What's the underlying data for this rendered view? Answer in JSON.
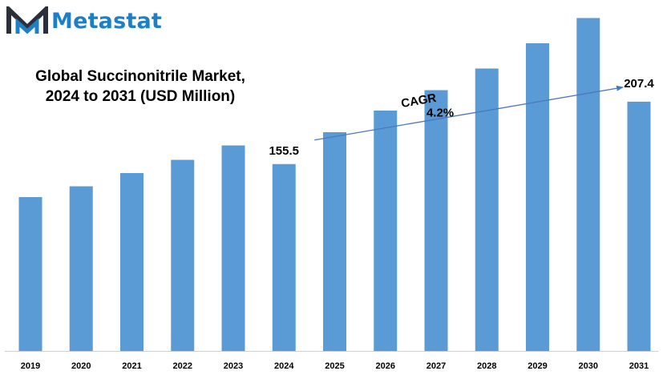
{
  "brand": {
    "name": "Metastat",
    "colors": {
      "primary": "#1f7fc4",
      "dark": "#2b2f3a"
    }
  },
  "chart_data": {
    "type": "bar",
    "title_lines": [
      "Global Succinonitrile  Market,",
      "2024 to 2031 (USD Million)"
    ],
    "categories": [
      "2019",
      "2020",
      "2021",
      "2022",
      "2023",
      "2024",
      "2025",
      "2026",
      "2027",
      "2028",
      "2029",
      "2030",
      "2031"
    ],
    "values": [
      128,
      137,
      148,
      159,
      171,
      155.5,
      182,
      200,
      217,
      235,
      256,
      277,
      207.4
    ],
    "data_labels": [
      {
        "category": "2024",
        "text": "155.5"
      },
      {
        "category": "2031",
        "text": "207.4"
      }
    ],
    "annotation": {
      "label": "CAGR",
      "value": "4.2%",
      "from": "2024",
      "to": "2031"
    },
    "bar_color": "#5b9bd5",
    "arrow_color": "#4a78c0",
    "grid": false,
    "legend": "none"
  }
}
